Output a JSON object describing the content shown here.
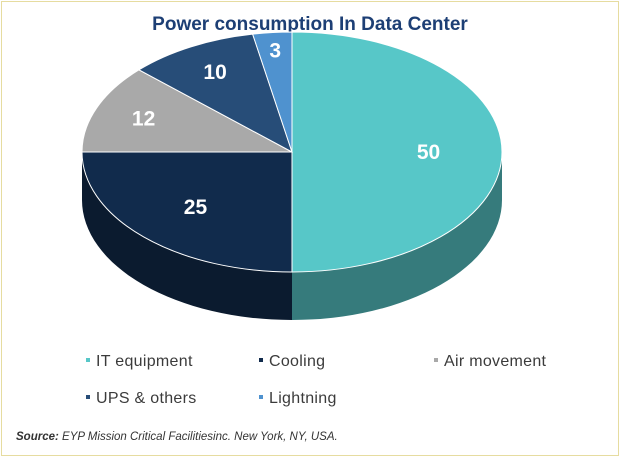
{
  "chart_data": {
    "type": "pie",
    "title": "Power consumption In Data Center",
    "slices": [
      {
        "name": "IT equipment",
        "value": 50,
        "color": "#57c7c8"
      },
      {
        "name": "Cooling",
        "value": 25,
        "color": "#112b4c"
      },
      {
        "name": "Air movement",
        "value": 12,
        "color": "#a9a9a9"
      },
      {
        "name": "UPS & others",
        "value": 10,
        "color": "#274d78"
      },
      {
        "name": "Lightning",
        "value": 3,
        "color": "#4f92cf"
      }
    ],
    "legend_position": "bottom",
    "style": "3d"
  },
  "source": {
    "label": "Source:",
    "text": "EYP Mission Critical Facilitiesinc. New York, NY, USA."
  }
}
